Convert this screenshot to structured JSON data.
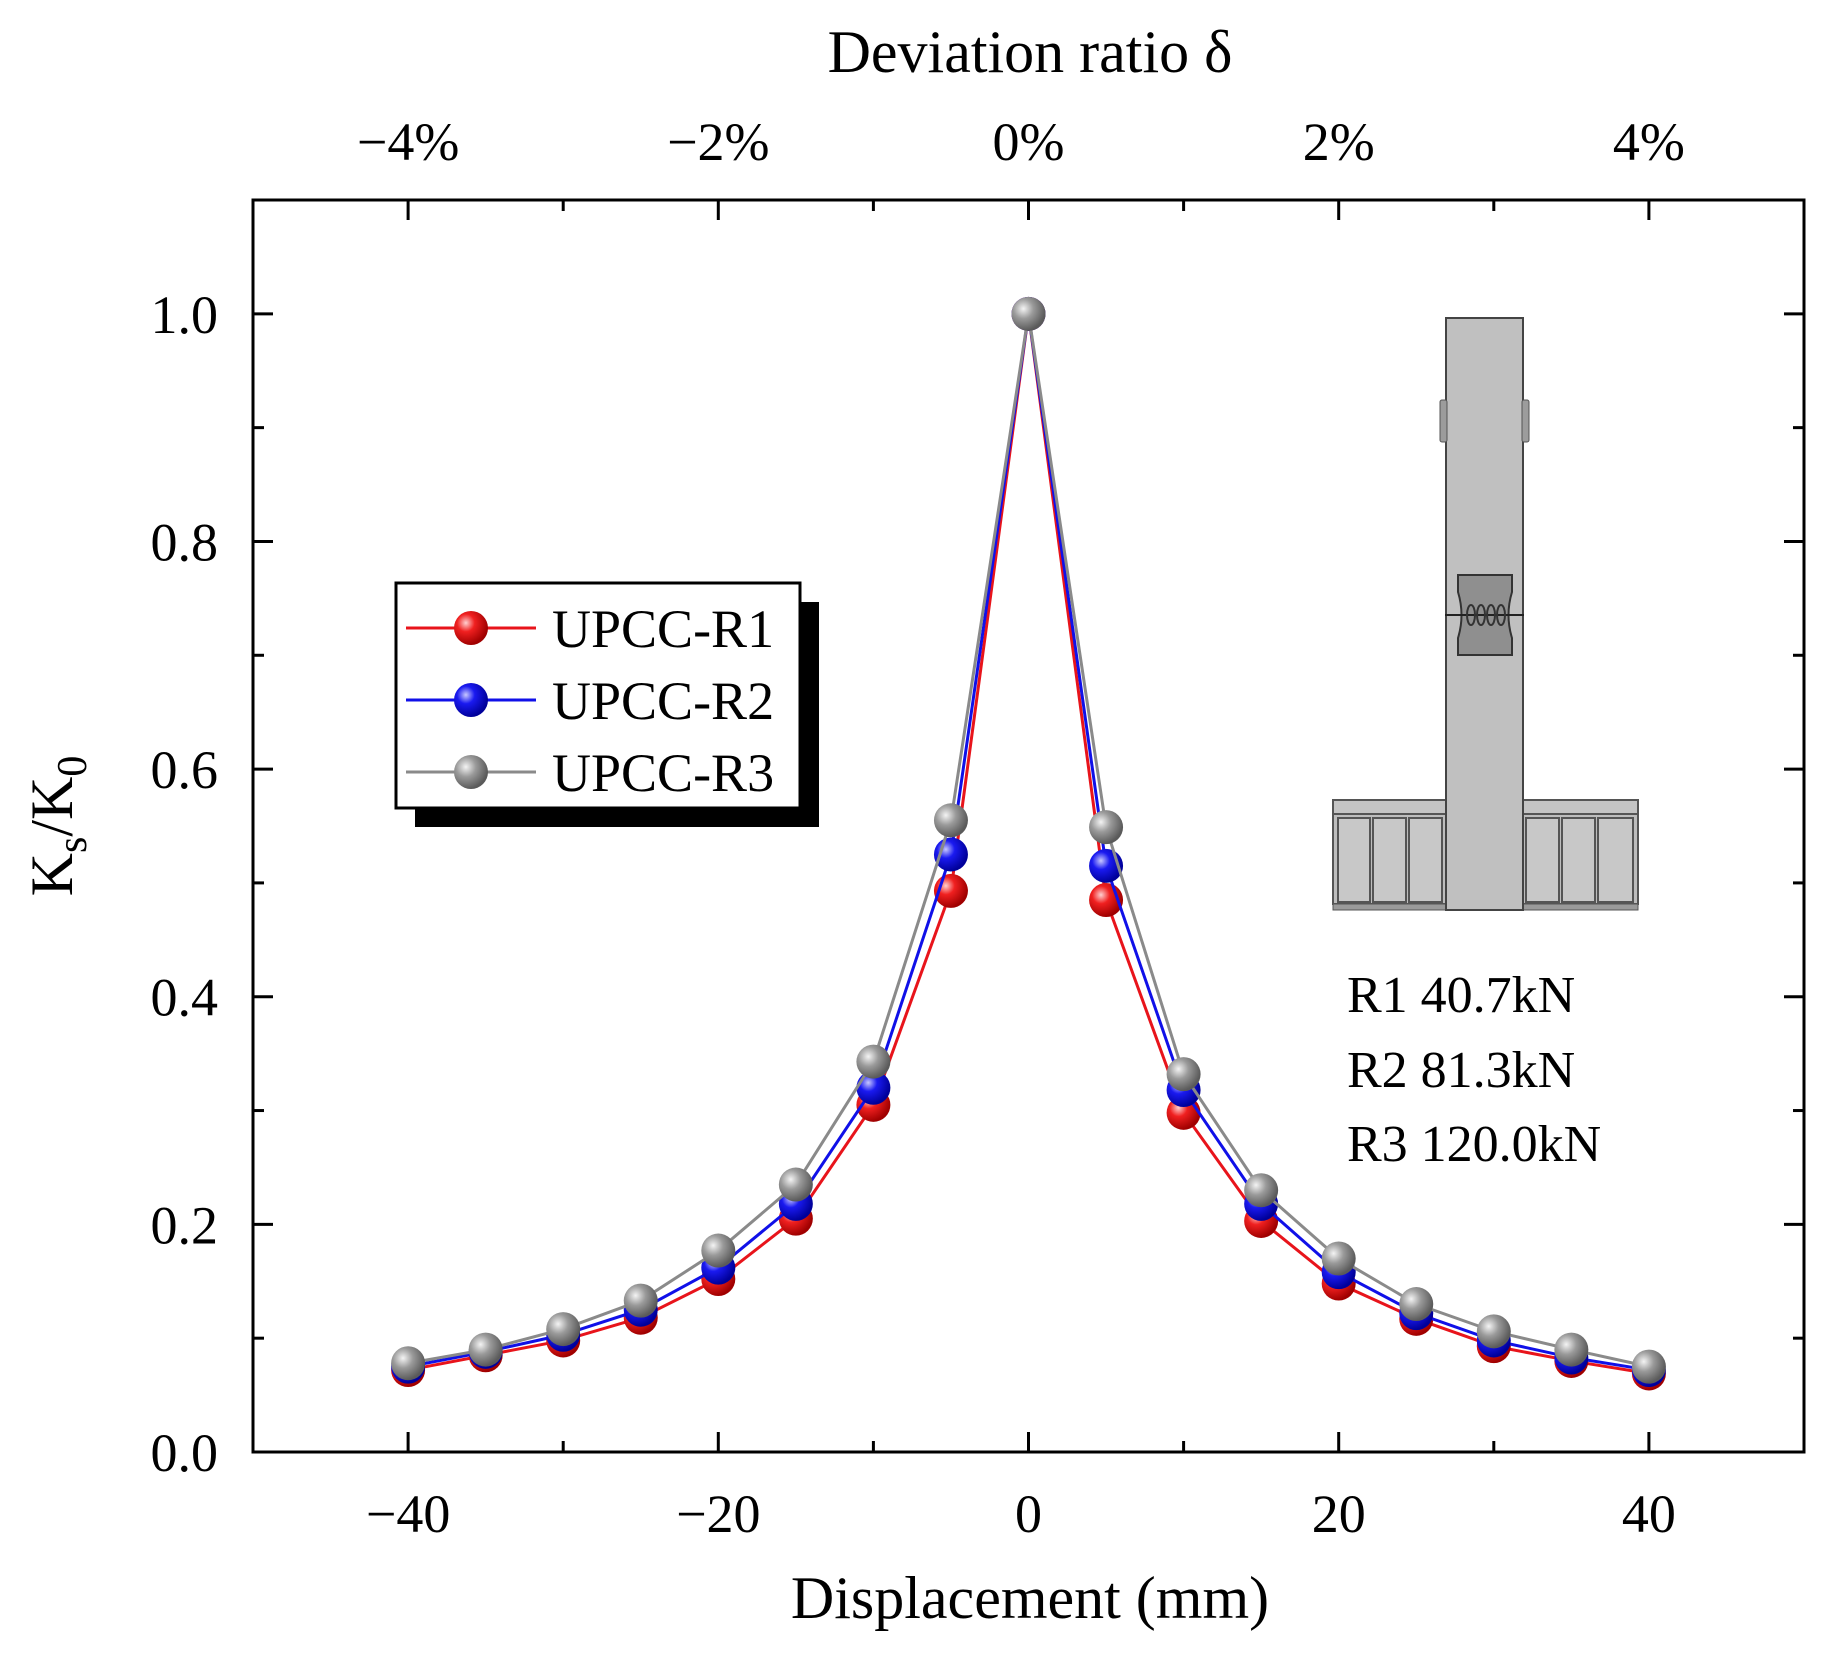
{
  "chart_data": {
    "type": "line",
    "xlabel": "Displacement (mm)",
    "ylabel_main": "K",
    "ylabel_sub1": "s",
    "ylabel_mid": "/K",
    "ylabel_sub2": "0",
    "top_axis_title": "Deviation ratio δ",
    "xlim": [
      -50,
      50
    ],
    "ylim": [
      0.0,
      1.1
    ],
    "x_ticks": [
      -40,
      -20,
      0,
      20,
      40
    ],
    "x_tick_labels": [
      "−40",
      "−20",
      "0",
      "20",
      "40"
    ],
    "y_ticks": [
      0.0,
      0.2,
      0.4,
      0.6,
      0.8,
      1.0
    ],
    "y_tick_labels": [
      "0.0",
      "0.2",
      "0.4",
      "0.6",
      "0.8",
      "1.0"
    ],
    "top_ticks": [
      -40,
      -20,
      0,
      20,
      40
    ],
    "top_tick_labels": [
      "−4%",
      "−2%",
      "0%",
      "2%",
      "4%"
    ],
    "grid": false,
    "legend_position": "center-left",
    "x": [
      -40,
      -35,
      -30,
      -25,
      -20,
      -15,
      -10,
      -5,
      0,
      5,
      10,
      15,
      20,
      25,
      30,
      35,
      40
    ],
    "series": [
      {
        "name": "UPCC-R1",
        "color": "#e8141b",
        "values": [
          0.072,
          0.085,
          0.098,
          0.118,
          0.152,
          0.205,
          0.305,
          0.493,
          1.0,
          0.485,
          0.298,
          0.203,
          0.148,
          0.117,
          0.093,
          0.08,
          0.069
        ]
      },
      {
        "name": "UPCC-R2",
        "color": "#1010e8",
        "values": [
          0.075,
          0.088,
          0.103,
          0.125,
          0.162,
          0.218,
          0.32,
          0.525,
          1.0,
          0.515,
          0.318,
          0.218,
          0.158,
          0.122,
          0.098,
          0.083,
          0.072
        ]
      },
      {
        "name": "UPCC-R3",
        "color": "#8a8a8a",
        "values": [
          0.078,
          0.09,
          0.108,
          0.133,
          0.177,
          0.235,
          0.343,
          0.555,
          1.0,
          0.549,
          0.332,
          0.23,
          0.17,
          0.13,
          0.106,
          0.09,
          0.075
        ]
      }
    ],
    "annotations": [
      "R1 40.7kN",
      "R2 81.3kN",
      "R3 120.0kN"
    ],
    "inset_image": "column-specimen-drawing"
  }
}
